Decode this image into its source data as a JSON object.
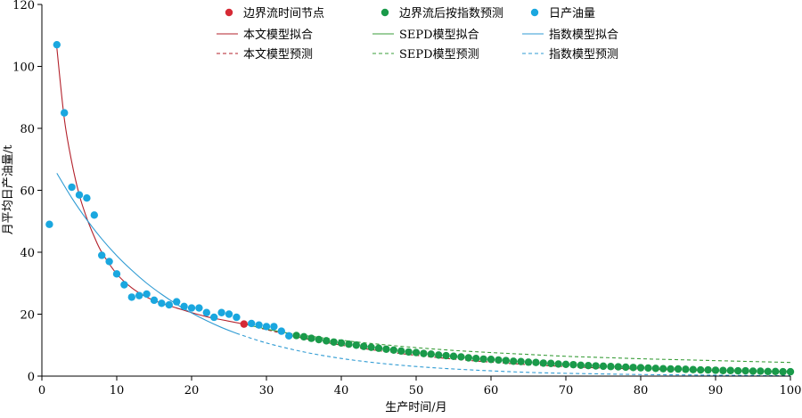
{
  "chart_data": {
    "type": "scatter",
    "xlabel": "生产时间/月",
    "ylabel": "月平均日产油量/t",
    "xlim": [
      0,
      100
    ],
    "ylim": [
      0,
      120
    ],
    "xticks": [
      0,
      10,
      20,
      30,
      40,
      50,
      60,
      70,
      80,
      90,
      100
    ],
    "yticks": [
      0,
      20,
      40,
      60,
      80,
      100,
      120
    ],
    "grid": false,
    "legend_position": "top",
    "colors": {
      "boundary": "#d62a35",
      "predicted_points": "#1a9a4a",
      "daily_oil": "#1aa7df",
      "model_line": "#b3212b",
      "sepd_line": "#3a9e3a",
      "exp_line": "#2f9bd3",
      "axis": "#000000"
    },
    "legend": [
      {
        "key": "boundary",
        "label": "边界流时间节点"
      },
      {
        "key": "predicted",
        "label": "边界流后按指数预测"
      },
      {
        "key": "daily",
        "label": "日产油量"
      },
      {
        "key": "model_fit",
        "label": "本文模型拟合"
      },
      {
        "key": "sepd_fit",
        "label": "SEPD模型拟合"
      },
      {
        "key": "exp_fit",
        "label": "指数模型拟合"
      },
      {
        "key": "model_pred",
        "label": "本文模型预测"
      },
      {
        "key": "sepd_pred",
        "label": "SEPD模型预测"
      },
      {
        "key": "exp_pred",
        "label": "指数模型预测"
      }
    ],
    "series": [
      {
        "name": "日产油量",
        "kind": "scatter",
        "x": [
          1,
          2,
          3,
          4,
          5,
          6,
          7,
          8,
          9,
          10,
          11,
          12,
          13,
          14,
          15,
          16,
          17,
          18,
          19,
          20,
          21,
          22,
          23,
          24,
          25,
          26,
          28,
          29,
          30,
          31,
          32,
          33
        ],
        "y": [
          49,
          107,
          85,
          61,
          58.5,
          57.5,
          52,
          39,
          37,
          33,
          29.5,
          25.5,
          26,
          26.5,
          24.5,
          23.5,
          23,
          24,
          22.5,
          22,
          22,
          20.5,
          19,
          20.5,
          20,
          19,
          17,
          16.5,
          16,
          16,
          14.5,
          13
        ]
      },
      {
        "name": "边界流时间节点",
        "kind": "scatter",
        "x": [
          27
        ],
        "y": [
          16.8
        ]
      },
      {
        "name": "边界流后按指数预测",
        "kind": "scatter",
        "x": [
          34,
          35,
          36,
          37,
          38,
          39,
          40,
          41,
          42,
          43,
          44,
          45,
          46,
          47,
          48,
          49,
          50,
          51,
          52,
          53,
          54,
          55,
          56,
          57,
          58,
          59,
          60,
          61,
          62,
          63,
          64,
          65,
          66,
          67,
          68,
          69,
          70,
          71,
          72,
          73,
          74,
          75,
          76,
          77,
          78,
          79,
          80,
          81,
          82,
          83,
          84,
          85,
          86,
          87,
          88,
          89,
          90,
          91,
          92,
          93,
          94,
          95,
          96,
          97,
          98,
          99,
          100
        ],
        "y": [
          13.1,
          12.7,
          12.2,
          11.8,
          11.4,
          11.0,
          10.7,
          10.3,
          10.0,
          9.6,
          9.3,
          9.0,
          8.7,
          8.4,
          8.1,
          7.8,
          7.6,
          7.3,
          7.1,
          6.8,
          6.6,
          6.4,
          6.2,
          5.9,
          5.7,
          5.5,
          5.4,
          5.2,
          5.0,
          4.8,
          4.7,
          4.5,
          4.4,
          4.2,
          4.1,
          3.9,
          3.8,
          3.7,
          3.5,
          3.4,
          3.3,
          3.2,
          3.1,
          3.0,
          2.9,
          2.8,
          2.7,
          2.6,
          2.5,
          2.4,
          2.3,
          2.3,
          2.2,
          2.1,
          2.0,
          2.0,
          1.9,
          1.8,
          1.8,
          1.7,
          1.7,
          1.6,
          1.6,
          1.5,
          1.5,
          1.4,
          1.4
        ]
      },
      {
        "name": "本文模型拟合",
        "kind": "line",
        "x": [
          2,
          3,
          4,
          5,
          6,
          7,
          8,
          10,
          12,
          14,
          16,
          18,
          20,
          22,
          24,
          27
        ],
        "y": [
          106,
          83,
          69,
          58.5,
          51,
          45,
          40,
          33,
          28.5,
          25.5,
          23.5,
          22,
          20.5,
          19.2,
          18.2,
          16.8
        ]
      },
      {
        "name": "本文模型预测",
        "kind": "line-dashed",
        "x": [
          27,
          30,
          35,
          40,
          45,
          50,
          55,
          60,
          65,
          70,
          75,
          80,
          85,
          90,
          95,
          100
        ],
        "y": [
          16.8,
          15.0,
          12.2,
          10.0,
          8.2,
          6.7,
          5.5,
          4.5,
          3.7,
          3.1,
          2.6,
          2.3,
          2.0,
          1.8,
          1.6,
          1.5
        ]
      },
      {
        "name": "SEPD模型拟合",
        "kind": "line",
        "x": [
          27,
          30,
          33
        ],
        "y": [
          16.8,
          15.2,
          13.8
        ]
      },
      {
        "name": "SEPD模型预测",
        "kind": "line-dashed",
        "x": [
          33,
          40,
          45,
          50,
          55,
          60,
          65,
          70,
          75,
          80,
          85,
          90,
          95,
          100
        ],
        "y": [
          13.8,
          11.6,
          10.3,
          9.2,
          8.3,
          7.6,
          7.0,
          6.4,
          6.0,
          5.6,
          5.3,
          5.0,
          4.7,
          4.4
        ]
      },
      {
        "name": "指数模型拟合",
        "kind": "line",
        "x": [
          2,
          4,
          6,
          8,
          10,
          12,
          14,
          16,
          18,
          20,
          22,
          24,
          26
        ],
        "y": [
          65.5,
          57.5,
          50.5,
          44.3,
          38.9,
          34.2,
          30.0,
          26.4,
          23.2,
          20.4,
          17.9,
          15.7,
          13.8
        ]
      },
      {
        "name": "指数模型预测",
        "kind": "line-dashed",
        "x": [
          26,
          30,
          35,
          40,
          45,
          50,
          55,
          60,
          65,
          70,
          75,
          80,
          85,
          90,
          95,
          100
        ],
        "y": [
          13.8,
          10.7,
          7.8,
          5.7,
          4.2,
          3.1,
          2.3,
          1.7,
          1.2,
          0.9,
          0.7,
          0.5,
          0.4,
          0.3,
          0.2,
          0.1
        ]
      }
    ]
  }
}
